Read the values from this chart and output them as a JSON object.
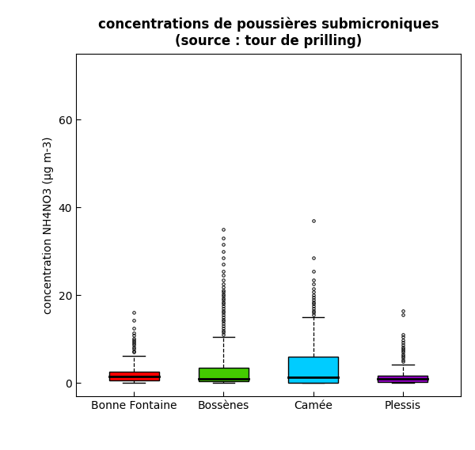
{
  "title_line1": "concentrations de poussières submicroniques",
  "title_line2": "(source : tour de prilling)",
  "ylabel": "concentration NH4NO3 (µg m-3)",
  "xlabels": [
    "Bonne Fontaine",
    "Bossènes",
    "Camée",
    "Plessis"
  ],
  "ylim": [
    -3,
    75
  ],
  "yticks": [
    0,
    20,
    40,
    60
  ],
  "box_colors": [
    "#ff0000",
    "#44cc00",
    "#00ccff",
    "#9900cc"
  ],
  "boxes": [
    {
      "label": "Bonne Fontaine",
      "q1": 0.5,
      "median": 1.5,
      "q3": 2.5,
      "whislo": 0.0,
      "whishi": 6.2,
      "fliers_high": [
        7.0,
        7.3,
        7.8,
        8.2,
        8.6,
        9.0,
        9.4,
        9.8,
        10.2,
        10.8,
        11.4,
        12.5,
        14.2,
        16.0
      ]
    },
    {
      "label": "Bossènes",
      "q1": 0.3,
      "median": 1.0,
      "q3": 3.5,
      "whislo": 0.0,
      "whishi": 10.5,
      "fliers_high": [
        11.0,
        11.5,
        12.0,
        12.5,
        13.0,
        13.5,
        14.0,
        14.5,
        15.0,
        15.5,
        16.0,
        16.5,
        17.0,
        17.5,
        18.0,
        18.5,
        19.0,
        19.3,
        19.8,
        20.2,
        20.7,
        21.2,
        21.8,
        22.5,
        23.5,
        24.5,
        25.5,
        27.0,
        28.5,
        30.0,
        31.5,
        33.0,
        35.0
      ]
    },
    {
      "label": "Camée",
      "q1": 0.1,
      "median": 1.2,
      "q3": 6.0,
      "whislo": 0.0,
      "whishi": 15.0,
      "fliers_high": [
        15.5,
        16.0,
        16.5,
        17.0,
        17.5,
        18.0,
        18.5,
        19.0,
        19.5,
        20.0,
        20.8,
        21.5,
        22.5,
        23.5,
        25.5,
        28.5,
        37.0
      ]
    },
    {
      "label": "Plessis",
      "q1": 0.2,
      "median": 0.9,
      "q3": 1.6,
      "whislo": 0.0,
      "whishi": 4.2,
      "fliers_high": [
        4.8,
        5.2,
        5.7,
        6.1,
        6.5,
        7.0,
        7.4,
        7.8,
        8.2,
        8.7,
        9.2,
        9.8,
        10.4,
        11.0,
        15.5,
        16.5
      ]
    }
  ],
  "background_color": "#ffffff",
  "box_width": 0.55,
  "title_fontsize": 12,
  "axis_fontsize": 10,
  "tick_fontsize": 10,
  "figsize": [
    6.0,
    5.69
  ],
  "dpi": 100
}
